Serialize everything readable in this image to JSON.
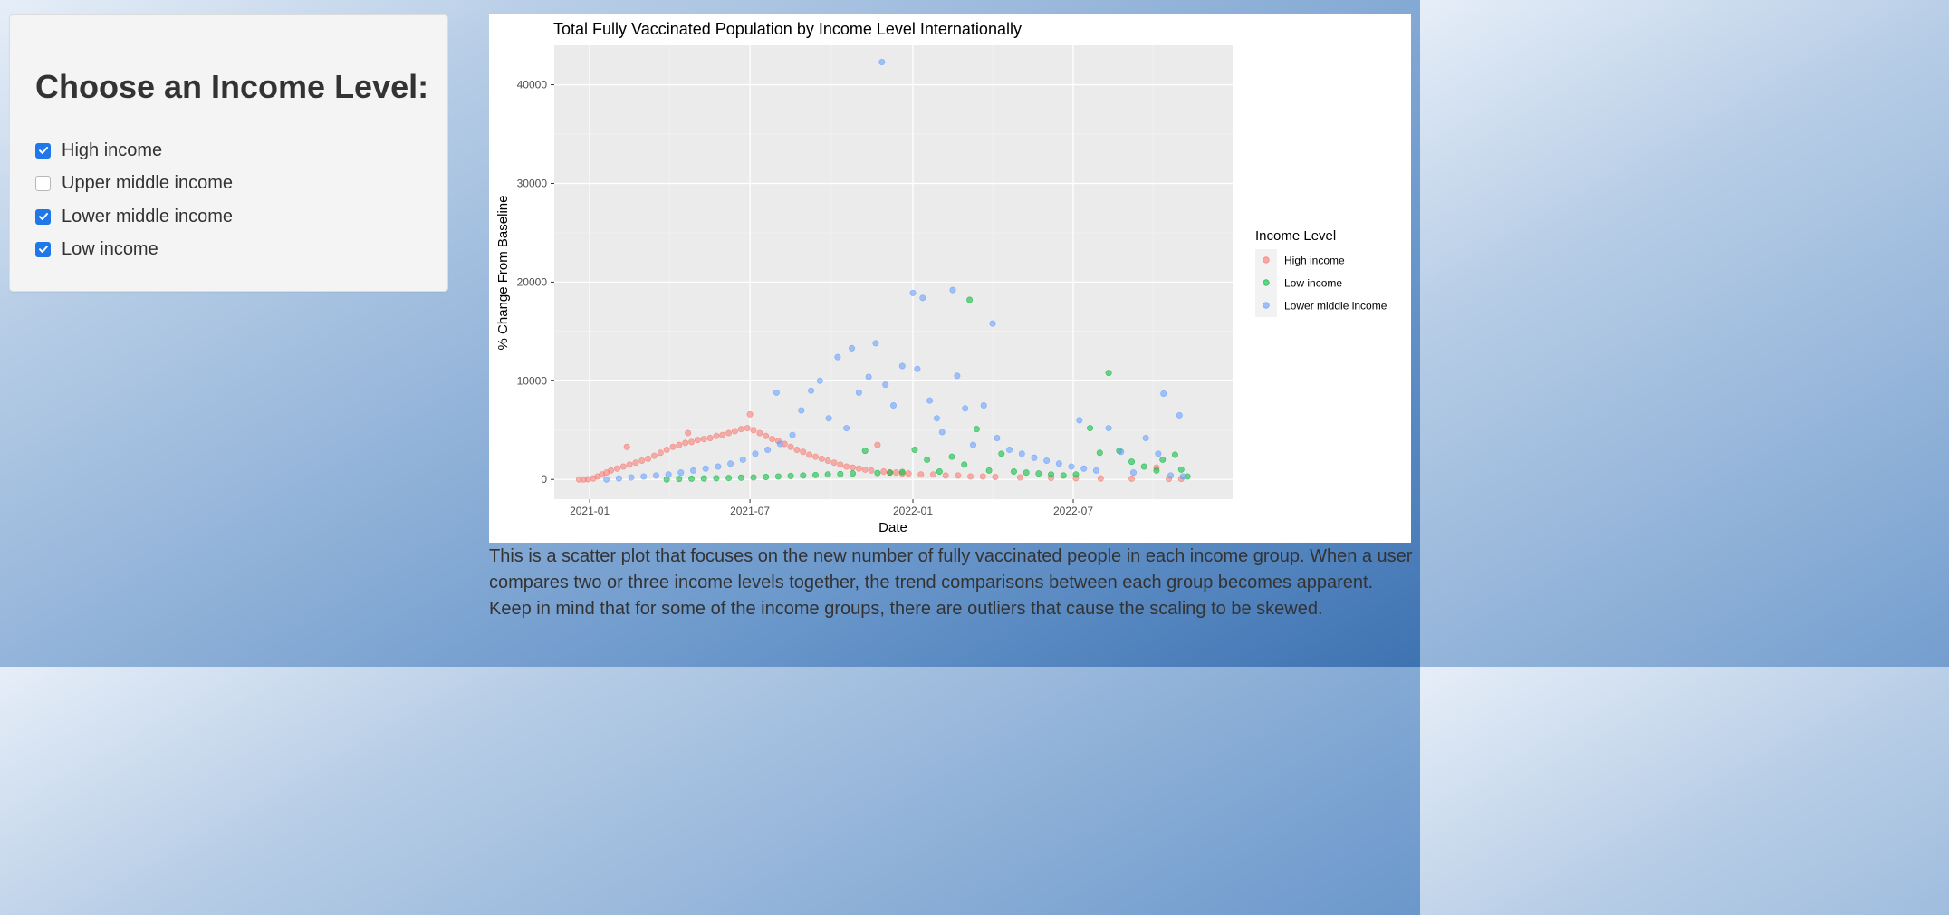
{
  "sidebar": {
    "heading": "Choose an Income Level:",
    "options": [
      {
        "label": "High income",
        "checked": true
      },
      {
        "label": "Upper middle income",
        "checked": false
      },
      {
        "label": "Lower middle income",
        "checked": true
      },
      {
        "label": "Low income",
        "checked": true
      }
    ]
  },
  "description": "This is a scatter plot that focuses on the new number of fully vaccinated people in each income group. When a user compares two or three income levels together, the trend comparisons between each group becomes apparent. Keep in mind that for some of the income groups, there are outliers that cause the scaling to be skewed.",
  "colors": {
    "checkbox_accent": "#1f77e8",
    "panel_background": "#ebebeb",
    "high_income": "#f8766d",
    "low_income": "#00ba38",
    "lower_middle_income": "#619cff"
  },
  "chart_data": {
    "type": "scatter",
    "title": "Total Fully Vaccinated Population by Income Level Internationally",
    "xlabel": "Date",
    "ylabel": "% Change From Baseline",
    "x_ticks": [
      "2021-01",
      "2021-07",
      "2022-01",
      "2022-07"
    ],
    "y_ticks": [
      0,
      10000,
      20000,
      30000,
      40000
    ],
    "ylim": [
      -2000,
      44000
    ],
    "xlim": [
      "2020-11-22",
      "2022-12-28"
    ],
    "grid": true,
    "legend_title": "Income Level",
    "legend_position": "right",
    "series": [
      {
        "name": "High income",
        "color": "#f8766d",
        "points": [
          [
            "2020-12-20",
            0
          ],
          [
            "2020-12-25",
            0
          ],
          [
            "2020-12-30",
            20
          ],
          [
            "2021-01-05",
            100
          ],
          [
            "2021-01-10",
            300
          ],
          [
            "2021-01-15",
            500
          ],
          [
            "2021-01-20",
            700
          ],
          [
            "2021-01-25",
            900
          ],
          [
            "2021-02-01",
            1100
          ],
          [
            "2021-02-08",
            1300
          ],
          [
            "2021-02-12",
            3300
          ],
          [
            "2021-02-15",
            1500
          ],
          [
            "2021-02-22",
            1700
          ],
          [
            "2021-03-01",
            1900
          ],
          [
            "2021-03-08",
            2100
          ],
          [
            "2021-03-15",
            2400
          ],
          [
            "2021-03-22",
            2700
          ],
          [
            "2021-03-29",
            3000
          ],
          [
            "2021-04-05",
            3300
          ],
          [
            "2021-04-12",
            3500
          ],
          [
            "2021-04-19",
            3700
          ],
          [
            "2021-04-22",
            4700
          ],
          [
            "2021-04-26",
            3800
          ],
          [
            "2021-05-03",
            4000
          ],
          [
            "2021-05-10",
            4100
          ],
          [
            "2021-05-17",
            4200
          ],
          [
            "2021-05-24",
            4400
          ],
          [
            "2021-05-31",
            4500
          ],
          [
            "2021-06-07",
            4700
          ],
          [
            "2021-06-14",
            4900
          ],
          [
            "2021-06-21",
            5100
          ],
          [
            "2021-06-28",
            5200
          ],
          [
            "2021-07-01",
            6600
          ],
          [
            "2021-07-05",
            5000
          ],
          [
            "2021-07-12",
            4700
          ],
          [
            "2021-07-19",
            4400
          ],
          [
            "2021-07-26",
            4100
          ],
          [
            "2021-08-02",
            3900
          ],
          [
            "2021-08-09",
            3600
          ],
          [
            "2021-08-16",
            3300
          ],
          [
            "2021-08-23",
            3000
          ],
          [
            "2021-08-30",
            2800
          ],
          [
            "2021-09-06",
            2500
          ],
          [
            "2021-09-13",
            2300
          ],
          [
            "2021-09-20",
            2100
          ],
          [
            "2021-09-27",
            1900
          ],
          [
            "2021-10-04",
            1700
          ],
          [
            "2021-10-11",
            1500
          ],
          [
            "2021-10-18",
            1300
          ],
          [
            "2021-10-25",
            1200
          ],
          [
            "2021-11-01",
            1100
          ],
          [
            "2021-11-08",
            1000
          ],
          [
            "2021-11-15",
            900
          ],
          [
            "2021-11-22",
            3500
          ],
          [
            "2021-11-29",
            800
          ],
          [
            "2021-12-06",
            700
          ],
          [
            "2021-12-13",
            700
          ],
          [
            "2021-12-20",
            600
          ],
          [
            "2021-12-27",
            600
          ],
          [
            "2022-01-10",
            500
          ],
          [
            "2022-01-24",
            500
          ],
          [
            "2022-02-07",
            400
          ],
          [
            "2022-02-21",
            400
          ],
          [
            "2022-03-07",
            300
          ],
          [
            "2022-03-21",
            300
          ],
          [
            "2022-04-04",
            250
          ],
          [
            "2022-05-02",
            200
          ],
          [
            "2022-06-06",
            150
          ],
          [
            "2022-07-04",
            120
          ],
          [
            "2022-08-01",
            100
          ],
          [
            "2022-09-05",
            80
          ],
          [
            "2022-10-03",
            1200
          ],
          [
            "2022-10-17",
            60
          ],
          [
            "2022-10-31",
            50
          ]
        ]
      },
      {
        "name": "Low income",
        "color": "#00ba38",
        "points": [
          [
            "2021-03-29",
            0
          ],
          [
            "2021-04-12",
            50
          ],
          [
            "2021-04-26",
            80
          ],
          [
            "2021-05-10",
            100
          ],
          [
            "2021-05-24",
            120
          ],
          [
            "2021-06-07",
            150
          ],
          [
            "2021-06-21",
            180
          ],
          [
            "2021-07-05",
            200
          ],
          [
            "2021-07-19",
            250
          ],
          [
            "2021-08-02",
            300
          ],
          [
            "2021-08-16",
            350
          ],
          [
            "2021-08-30",
            400
          ],
          [
            "2021-09-13",
            450
          ],
          [
            "2021-09-27",
            500
          ],
          [
            "2021-10-11",
            550
          ],
          [
            "2021-10-25",
            600
          ],
          [
            "2021-11-08",
            2900
          ],
          [
            "2021-11-22",
            650
          ],
          [
            "2021-12-06",
            700
          ],
          [
            "2021-12-20",
            750
          ],
          [
            "2022-01-03",
            3000
          ],
          [
            "2022-01-17",
            2000
          ],
          [
            "2022-01-31",
            800
          ],
          [
            "2022-02-14",
            2300
          ],
          [
            "2022-02-28",
            1500
          ],
          [
            "2022-03-06",
            18200
          ],
          [
            "2022-03-14",
            5100
          ],
          [
            "2022-03-28",
            900
          ],
          [
            "2022-04-11",
            2600
          ],
          [
            "2022-04-25",
            800
          ],
          [
            "2022-05-09",
            700
          ],
          [
            "2022-05-23",
            600
          ],
          [
            "2022-06-06",
            500
          ],
          [
            "2022-06-20",
            400
          ],
          [
            "2022-07-04",
            500
          ],
          [
            "2022-07-20",
            5200
          ],
          [
            "2022-07-31",
            2700
          ],
          [
            "2022-08-10",
            10800
          ],
          [
            "2022-08-22",
            2900
          ],
          [
            "2022-09-05",
            1800
          ],
          [
            "2022-09-19",
            1300
          ],
          [
            "2022-10-03",
            900
          ],
          [
            "2022-10-10",
            2000
          ],
          [
            "2022-10-24",
            2500
          ],
          [
            "2022-10-31",
            1000
          ],
          [
            "2022-11-07",
            300
          ]
        ]
      },
      {
        "name": "Lower middle income",
        "color": "#619cff",
        "points": [
          [
            "2021-01-20",
            0
          ],
          [
            "2021-02-03",
            100
          ],
          [
            "2021-02-17",
            200
          ],
          [
            "2021-03-03",
            300
          ],
          [
            "2021-03-17",
            400
          ],
          [
            "2021-03-31",
            500
          ],
          [
            "2021-04-14",
            700
          ],
          [
            "2021-04-28",
            900
          ],
          [
            "2021-05-12",
            1100
          ],
          [
            "2021-05-26",
            1300
          ],
          [
            "2021-06-09",
            1600
          ],
          [
            "2021-06-23",
            2000
          ],
          [
            "2021-07-07",
            2600
          ],
          [
            "2021-07-21",
            3000
          ],
          [
            "2021-07-31",
            8800
          ],
          [
            "2021-08-04",
            3600
          ],
          [
            "2021-08-18",
            4500
          ],
          [
            "2021-08-28",
            7000
          ],
          [
            "2021-09-08",
            9000
          ],
          [
            "2021-09-18",
            10000
          ],
          [
            "2021-09-28",
            6200
          ],
          [
            "2021-10-08",
            12400
          ],
          [
            "2021-10-18",
            5200
          ],
          [
            "2021-10-24",
            13300
          ],
          [
            "2021-11-01",
            8800
          ],
          [
            "2021-11-12",
            10400
          ],
          [
            "2021-11-20",
            13800
          ],
          [
            "2021-11-27",
            42300
          ],
          [
            "2021-12-01",
            9600
          ],
          [
            "2021-12-10",
            7500
          ],
          [
            "2021-12-20",
            11500
          ],
          [
            "2022-01-01",
            18900
          ],
          [
            "2022-01-06",
            11200
          ],
          [
            "2022-01-12",
            18400
          ],
          [
            "2022-01-20",
            8000
          ],
          [
            "2022-01-28",
            6200
          ],
          [
            "2022-02-03",
            4800
          ],
          [
            "2022-02-15",
            19200
          ],
          [
            "2022-02-20",
            10500
          ],
          [
            "2022-03-01",
            7200
          ],
          [
            "2022-03-10",
            3500
          ],
          [
            "2022-03-22",
            7500
          ],
          [
            "2022-04-01",
            15800
          ],
          [
            "2022-04-06",
            4200
          ],
          [
            "2022-04-20",
            3000
          ],
          [
            "2022-05-04",
            2600
          ],
          [
            "2022-05-18",
            2200
          ],
          [
            "2022-06-01",
            1900
          ],
          [
            "2022-06-15",
            1600
          ],
          [
            "2022-06-29",
            1300
          ],
          [
            "2022-07-08",
            6000
          ],
          [
            "2022-07-13",
            1100
          ],
          [
            "2022-07-27",
            900
          ],
          [
            "2022-08-10",
            5200
          ],
          [
            "2022-08-24",
            2800
          ],
          [
            "2022-09-07",
            700
          ],
          [
            "2022-09-21",
            4200
          ],
          [
            "2022-10-05",
            2600
          ],
          [
            "2022-10-11",
            8700
          ],
          [
            "2022-10-19",
            400
          ],
          [
            "2022-10-29",
            6500
          ],
          [
            "2022-11-02",
            300
          ]
        ]
      }
    ]
  }
}
